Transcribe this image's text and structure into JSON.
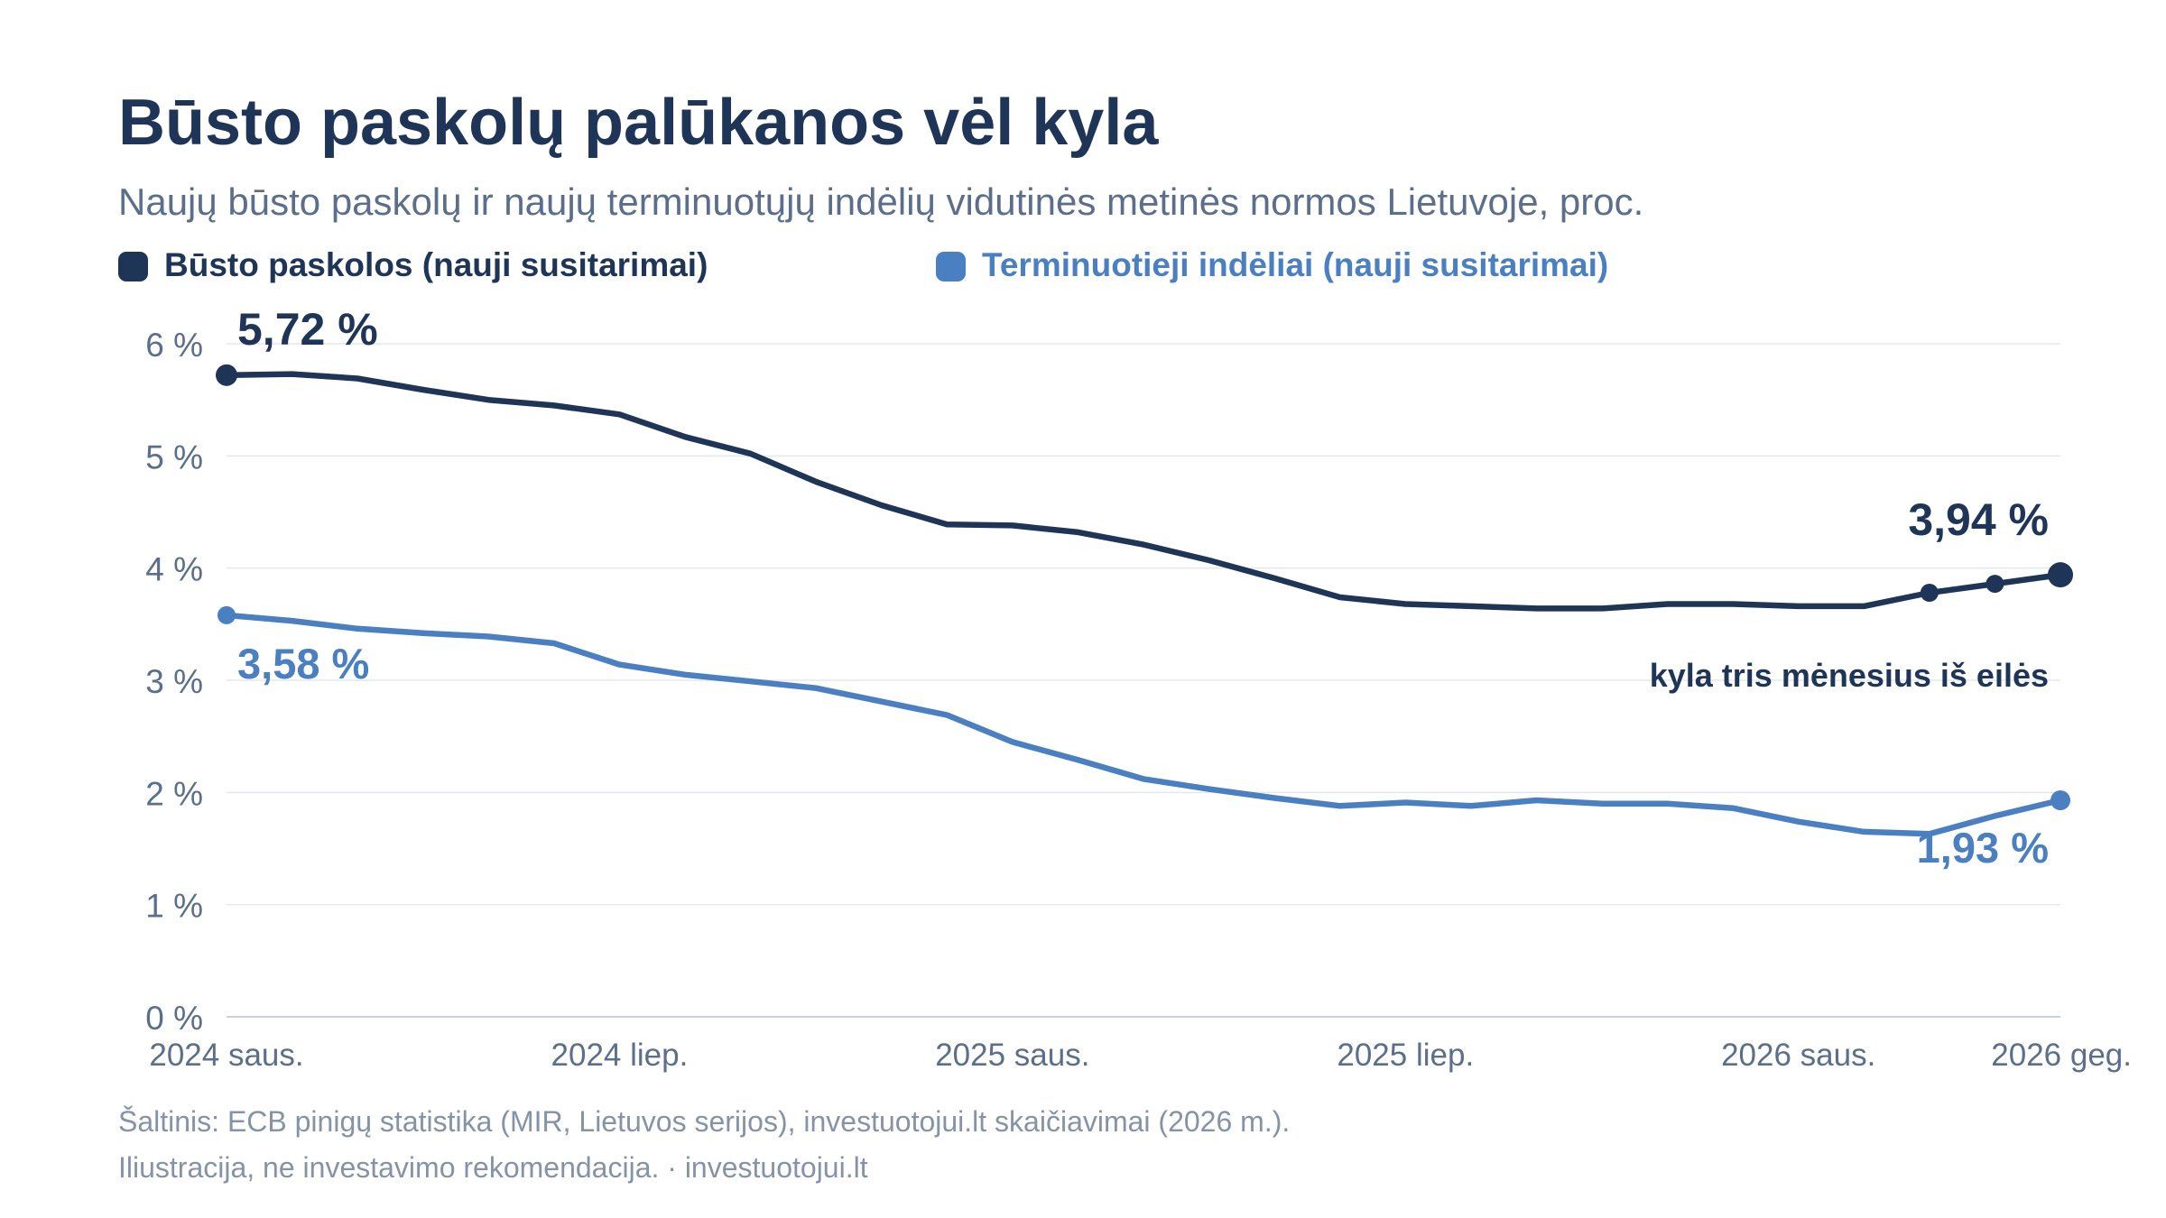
{
  "header": {
    "title": "Būsto paskolų palūkanos vėl kyla",
    "subtitle": "Naujų būsto paskolų ir naujų terminuotųjų indėlių vidutinės metinės normos Lietuvoje, proc."
  },
  "colors": {
    "title": "#1f3557",
    "subtitle": "#5b6f8c",
    "axis_text": "#5b6f8c",
    "grid": "#e3e8ef",
    "mortgage": "#1f3557",
    "deposits": "#4a7fc1",
    "footer": "#8593a8"
  },
  "chart_data": {
    "type": "line",
    "x": [
      "2024-01",
      "2024-02",
      "2024-03",
      "2024-04",
      "2024-05",
      "2024-06",
      "2024-07",
      "2024-08",
      "2024-09",
      "2024-10",
      "2024-11",
      "2024-12",
      "2025-01",
      "2025-02",
      "2025-03",
      "2025-04",
      "2025-05",
      "2025-06",
      "2025-07",
      "2025-08",
      "2025-09",
      "2025-10",
      "2025-11",
      "2025-12",
      "2026-01",
      "2026-02",
      "2026-03",
      "2026-04",
      "2026-05"
    ],
    "x_tick_labels": [
      {
        "index": 0,
        "label": "2024 saus."
      },
      {
        "index": 6,
        "label": "2024 liep."
      },
      {
        "index": 12,
        "label": "2025 saus."
      },
      {
        "index": 18,
        "label": "2025 liep."
      },
      {
        "index": 24,
        "label": "2026 saus."
      },
      {
        "index": 28,
        "label": "2026 geg."
      }
    ],
    "y_ticks": [
      0,
      1,
      2,
      3,
      4,
      5,
      6
    ],
    "y_tick_labels": [
      "0 %",
      "1 %",
      "2 %",
      "3 %",
      "4 %",
      "5 %",
      "6 %"
    ],
    "ylim": [
      0,
      6
    ],
    "grid": true,
    "legend_position": "top-left",
    "series": [
      {
        "name": "Būsto paskolos (nauji susitarimai)",
        "values": [
          5.72,
          5.73,
          5.69,
          5.59,
          5.5,
          5.45,
          5.37,
          5.17,
          5.02,
          4.77,
          4.56,
          4.39,
          4.38,
          4.32,
          4.21,
          4.07,
          3.91,
          3.74,
          3.68,
          3.66,
          3.64,
          3.64,
          3.68,
          3.68,
          3.66,
          3.66,
          3.78,
          3.86,
          3.94
        ],
        "start_label": "5,72 %",
        "end_label": "3,94 %",
        "highlight_points": [
          26,
          27,
          28
        ],
        "annotation": "kyla tris mėnesius iš eilės"
      },
      {
        "name": "Terminuotieji indėliai (nauji susitarimai)",
        "values": [
          3.58,
          3.53,
          3.46,
          3.42,
          3.39,
          3.33,
          3.14,
          3.05,
          2.99,
          2.93,
          2.81,
          2.69,
          2.45,
          2.29,
          2.12,
          2.03,
          1.95,
          1.88,
          1.91,
          1.88,
          1.93,
          1.9,
          1.9,
          1.86,
          1.74,
          1.65,
          1.63,
          1.79,
          1.93
        ],
        "start_label": "3,58 %",
        "end_label": "1,93 %"
      }
    ]
  },
  "footer": {
    "source": "Šaltinis: ECB pinigų statistika (MIR, Lietuvos serijos), investuotojui.lt skaičiavimai (2026 m.).",
    "disclaimer": "Iliustracija, ne investavimo rekomendacija. · investuotojui.lt"
  }
}
